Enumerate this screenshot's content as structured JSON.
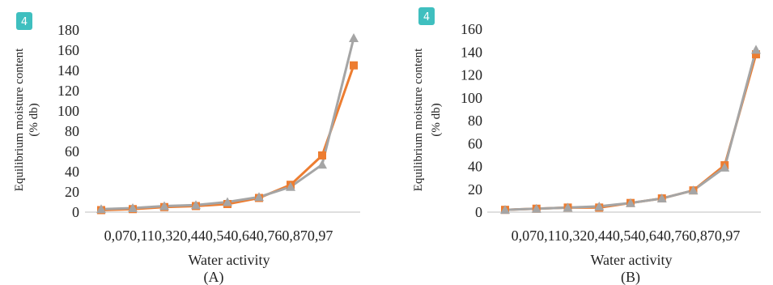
{
  "chart_data": [
    {
      "type": "line",
      "badge": "4",
      "title": "",
      "xlabel": "Water activity",
      "panel_label": "(A)",
      "ylabel_line1": "Equilibrium moisture content",
      "ylabel_line2": "(% db)",
      "categories": [
        "0,07",
        "0,11",
        "0,32",
        "0,44",
        "0,54",
        "0,64",
        "0,76",
        "0,87",
        "0,97"
      ],
      "category_axis_text": "0,070,110,320,440,540,640,760,870,97",
      "ylim": [
        0,
        180
      ],
      "yticks": [
        0,
        20,
        40,
        60,
        80,
        100,
        120,
        140,
        160,
        180
      ],
      "series": [
        {
          "color": "#ed7d31",
          "marker": "square",
          "values": [
            2,
            3,
            5,
            6,
            8,
            14,
            27,
            56,
            145
          ]
        },
        {
          "color": "#a5a5a5",
          "marker": "triangle",
          "values": [
            3,
            4,
            6,
            7,
            10,
            15,
            25,
            47,
            172
          ]
        }
      ]
    },
    {
      "type": "line",
      "badge": "4",
      "title": "",
      "xlabel": "Water activity",
      "panel_label": "(B)",
      "ylabel_line1": "Equilibrium moisture content",
      "ylabel_line2": "(% db)",
      "categories": [
        "0,07",
        "0,11",
        "0,32",
        "0,44",
        "0,54",
        "0,64",
        "0,76",
        "0,87",
        "0,97"
      ],
      "category_axis_text": "0,070,110,320,440,540,640,760,870,97",
      "ylim": [
        0,
        160
      ],
      "yticks": [
        0,
        20,
        40,
        60,
        80,
        100,
        120,
        140,
        160
      ],
      "series": [
        {
          "color": "#ed7d31",
          "marker": "square",
          "values": [
            2,
            3,
            4,
            4,
            8,
            12,
            19,
            41,
            138
          ]
        },
        {
          "color": "#a5a5a5",
          "marker": "triangle",
          "values": [
            2,
            3,
            4,
            5,
            8,
            12,
            19,
            39,
            142
          ]
        }
      ]
    }
  ]
}
